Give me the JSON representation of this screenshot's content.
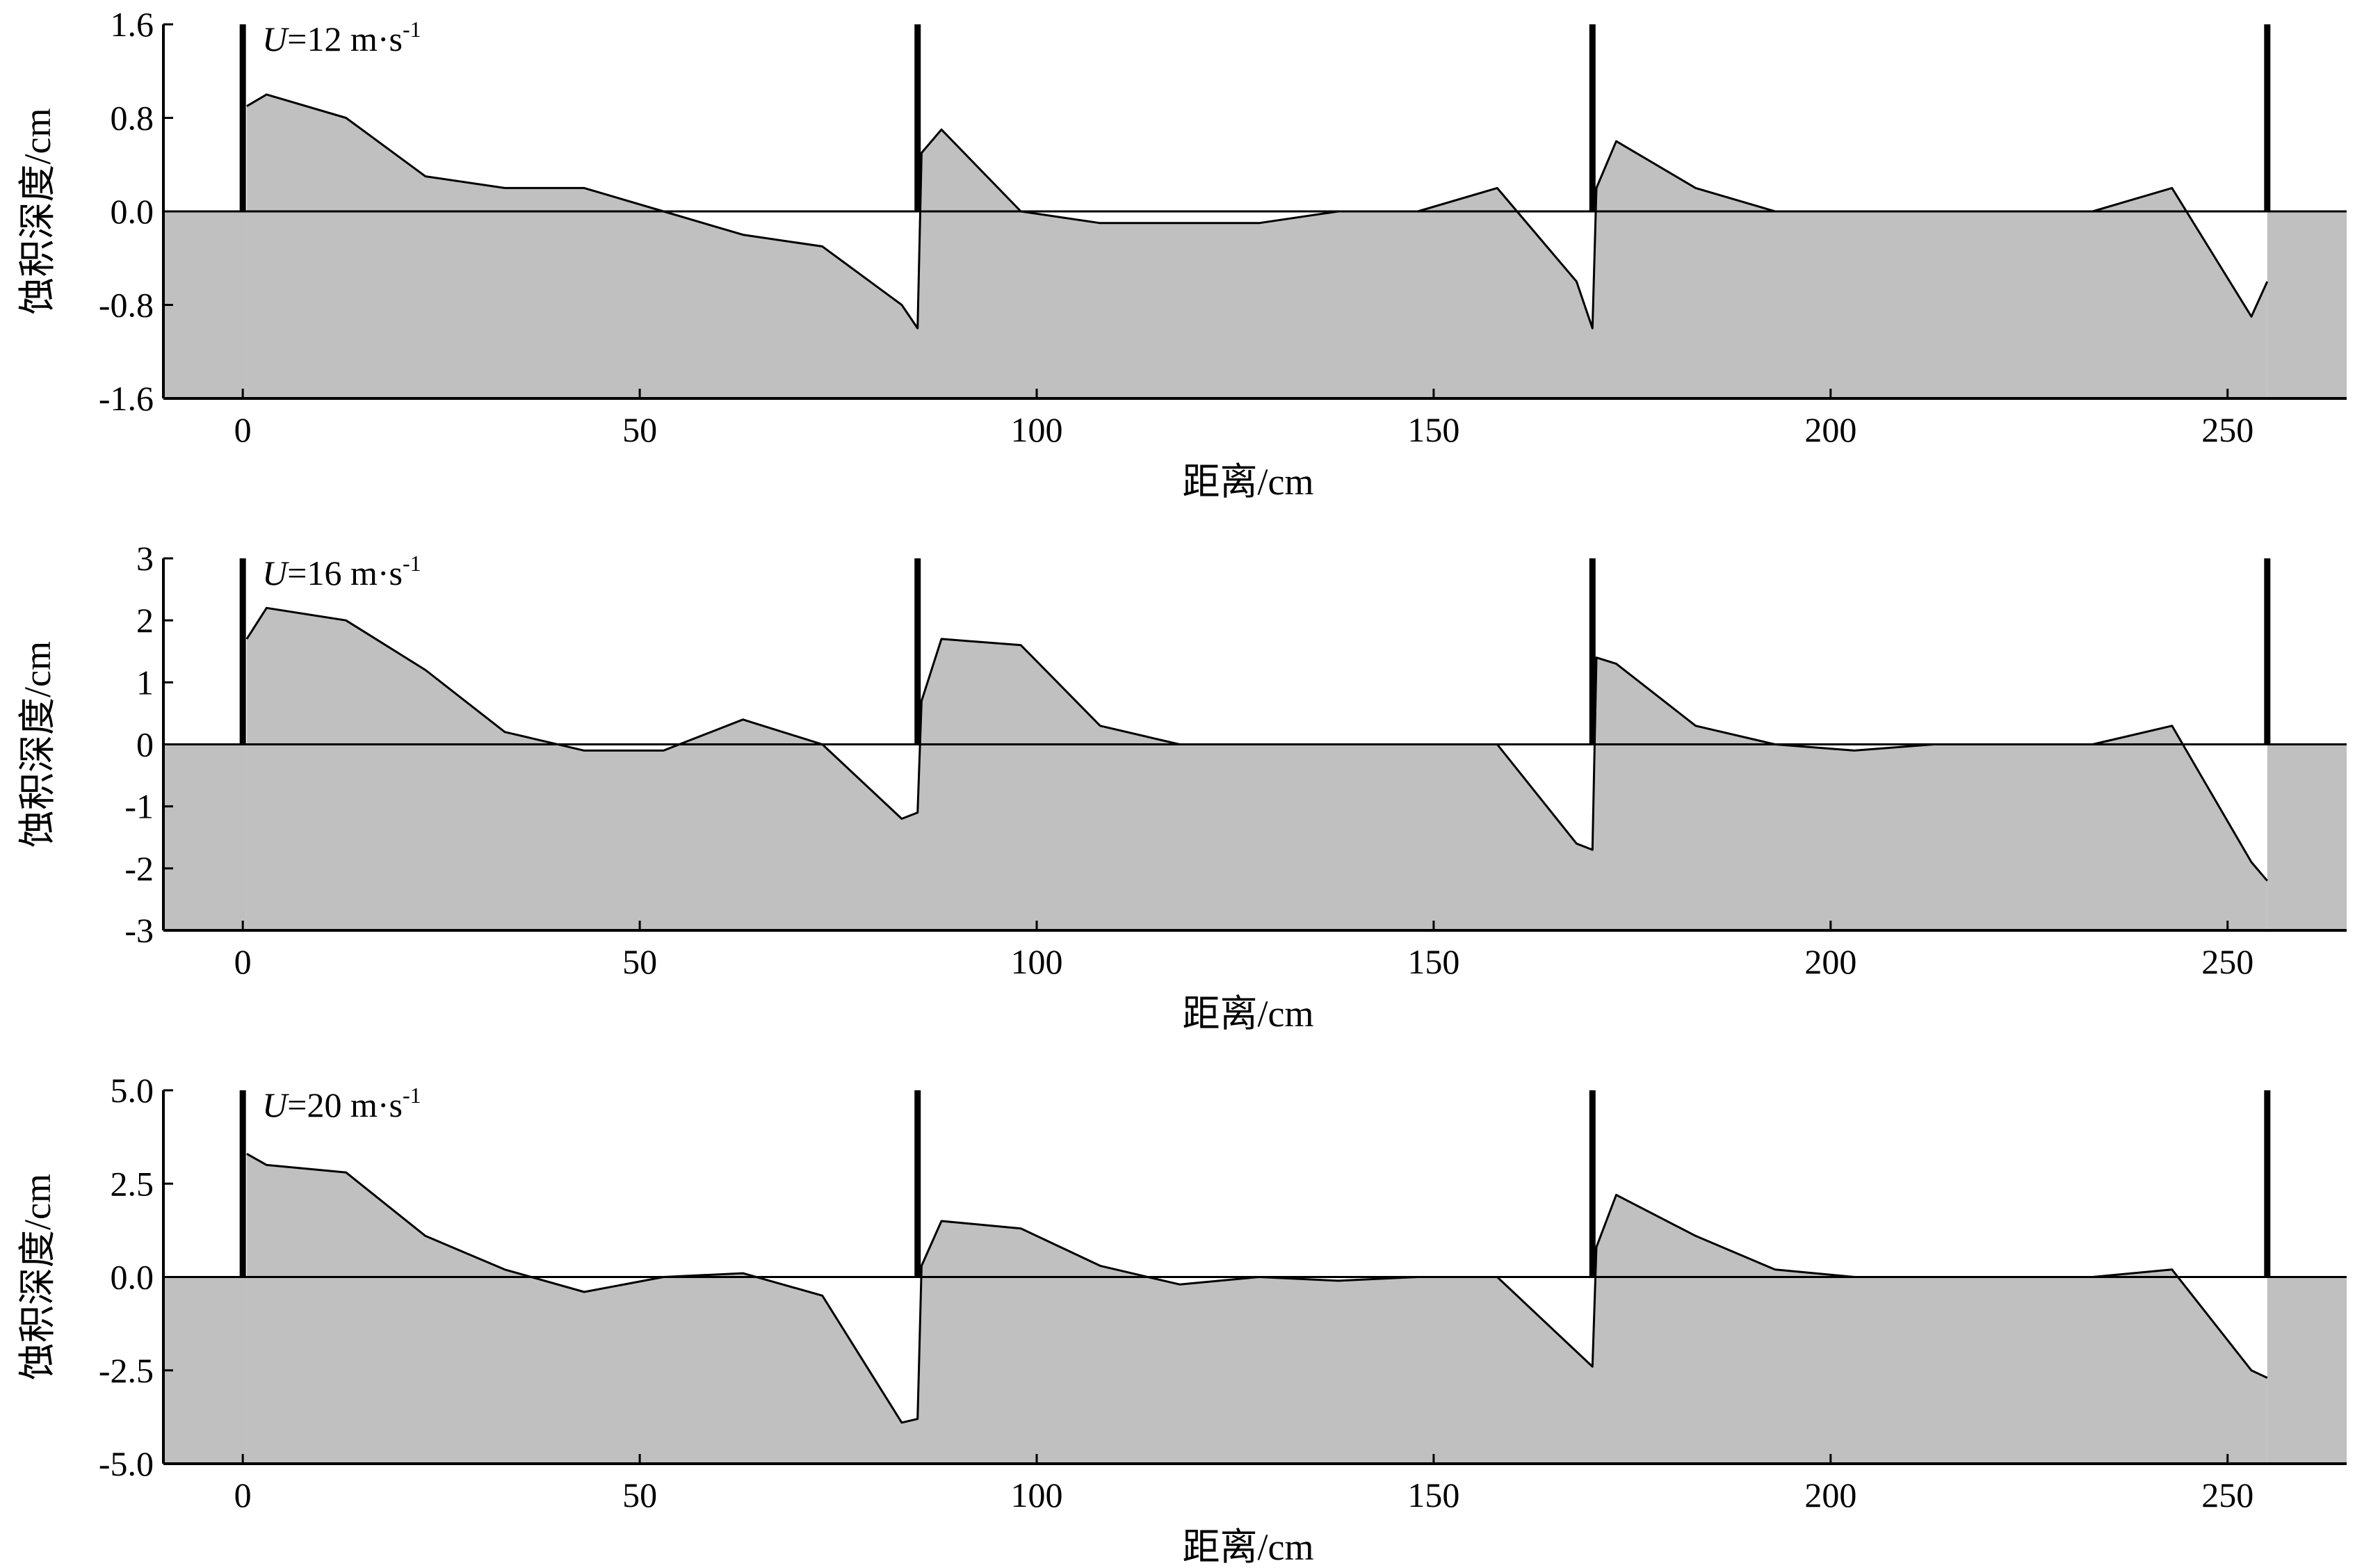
{
  "figure": {
    "background": "#ffffff",
    "fill_color": "#c0c0c0",
    "line_color": "#000000"
  },
  "chart_data": [
    {
      "type": "area",
      "annotation": {
        "var": "U",
        "text": "=12 m·s",
        "sup": "-1"
      },
      "xlabel": "距离/cm",
      "ylabel": "蚀积深度/cm",
      "xlim": [
        -10,
        265
      ],
      "ylim": [
        -1.6,
        1.6
      ],
      "xticks": [
        0,
        50,
        100,
        150,
        200,
        250
      ],
      "yticks": [
        -1.6,
        -0.8,
        0.0,
        0.8,
        1.6
      ],
      "ytick_labels": [
        "-1.6",
        "-0.8",
        "0.0",
        "0.8",
        "1.6"
      ],
      "barriers": [
        0,
        85,
        170,
        255
      ],
      "series": [
        {
          "x": [
            0.5,
            3,
            13,
            23,
            33,
            43,
            53,
            63,
            73,
            83,
            85,
            85.5,
            88,
            98,
            108,
            118,
            128,
            138,
            148,
            158,
            168,
            170,
            170.5,
            173,
            183,
            193,
            203,
            213,
            223,
            233,
            243,
            253,
            255
          ],
          "y": [
            0.9,
            1.0,
            0.8,
            0.3,
            0.2,
            0.2,
            0.0,
            -0.2,
            -0.3,
            -0.8,
            -1.0,
            0.5,
            0.7,
            0.0,
            -0.1,
            -0.1,
            -0.1,
            0.0,
            0.0,
            0.2,
            -0.6,
            -1.0,
            0.2,
            0.6,
            0.2,
            0.0,
            0.0,
            0.0,
            0.0,
            0.0,
            0.2,
            -0.9,
            -0.6
          ]
        }
      ]
    },
    {
      "type": "area",
      "annotation": {
        "var": "U",
        "text": "=16 m·s",
        "sup": "-1"
      },
      "xlabel": "距离/cm",
      "ylabel": "蚀积深度/cm",
      "xlim": [
        -10,
        265
      ],
      "ylim": [
        -3,
        3
      ],
      "xticks": [
        0,
        50,
        100,
        150,
        200,
        250
      ],
      "yticks": [
        -3,
        -2,
        -1,
        0,
        1,
        2,
        3
      ],
      "ytick_labels": [
        "-3",
        "-2",
        "-1",
        "0",
        "1",
        "2",
        "3"
      ],
      "barriers": [
        0,
        85,
        170,
        255
      ],
      "series": [
        {
          "x": [
            0.5,
            3,
            13,
            23,
            33,
            43,
            53,
            63,
            73,
            83,
            85,
            85.5,
            88,
            98,
            108,
            118,
            128,
            138,
            148,
            158,
            168,
            170,
            170.5,
            173,
            183,
            193,
            203,
            213,
            223,
            233,
            243,
            253,
            255
          ],
          "y": [
            1.7,
            2.2,
            2.0,
            1.2,
            0.2,
            -0.1,
            -0.1,
            0.4,
            0.0,
            -1.2,
            -1.1,
            0.7,
            1.7,
            1.6,
            0.3,
            0.0,
            0.0,
            0.0,
            0.0,
            0.0,
            -1.6,
            -1.7,
            1.4,
            1.3,
            0.3,
            0.0,
            -0.1,
            0.0,
            0.0,
            0.0,
            0.3,
            -1.9,
            -2.2
          ]
        }
      ]
    },
    {
      "type": "area",
      "annotation": {
        "var": "U",
        "text": "=20 m·s",
        "sup": "-1"
      },
      "xlabel": "距离/cm",
      "ylabel": "蚀积深度/cm",
      "xlim": [
        -10,
        265
      ],
      "ylim": [
        -5.0,
        5.0
      ],
      "xticks": [
        0,
        50,
        100,
        150,
        200,
        250
      ],
      "yticks": [
        -5.0,
        -2.5,
        0.0,
        2.5,
        5.0
      ],
      "ytick_labels": [
        "-5.0",
        "-2.5",
        "0.0",
        "2.5",
        "5.0"
      ],
      "barriers": [
        0,
        85,
        170,
        255
      ],
      "series": [
        {
          "x": [
            0.5,
            3,
            13,
            23,
            33,
            43,
            53,
            63,
            73,
            83,
            85,
            85.5,
            88,
            98,
            108,
            118,
            128,
            138,
            148,
            158,
            168,
            170,
            170.5,
            173,
            183,
            193,
            203,
            213,
            223,
            233,
            243,
            253,
            255
          ],
          "y": [
            3.3,
            3.0,
            2.8,
            1.1,
            0.2,
            -0.4,
            0.0,
            0.1,
            -0.5,
            -3.9,
            -3.8,
            0.3,
            1.5,
            1.3,
            0.3,
            -0.2,
            0.0,
            -0.1,
            0.0,
            0.0,
            -2.0,
            -2.4,
            0.8,
            2.2,
            1.1,
            0.2,
            0.0,
            0.0,
            0.0,
            0.0,
            0.2,
            -2.5,
            -2.7
          ]
        }
      ]
    }
  ]
}
